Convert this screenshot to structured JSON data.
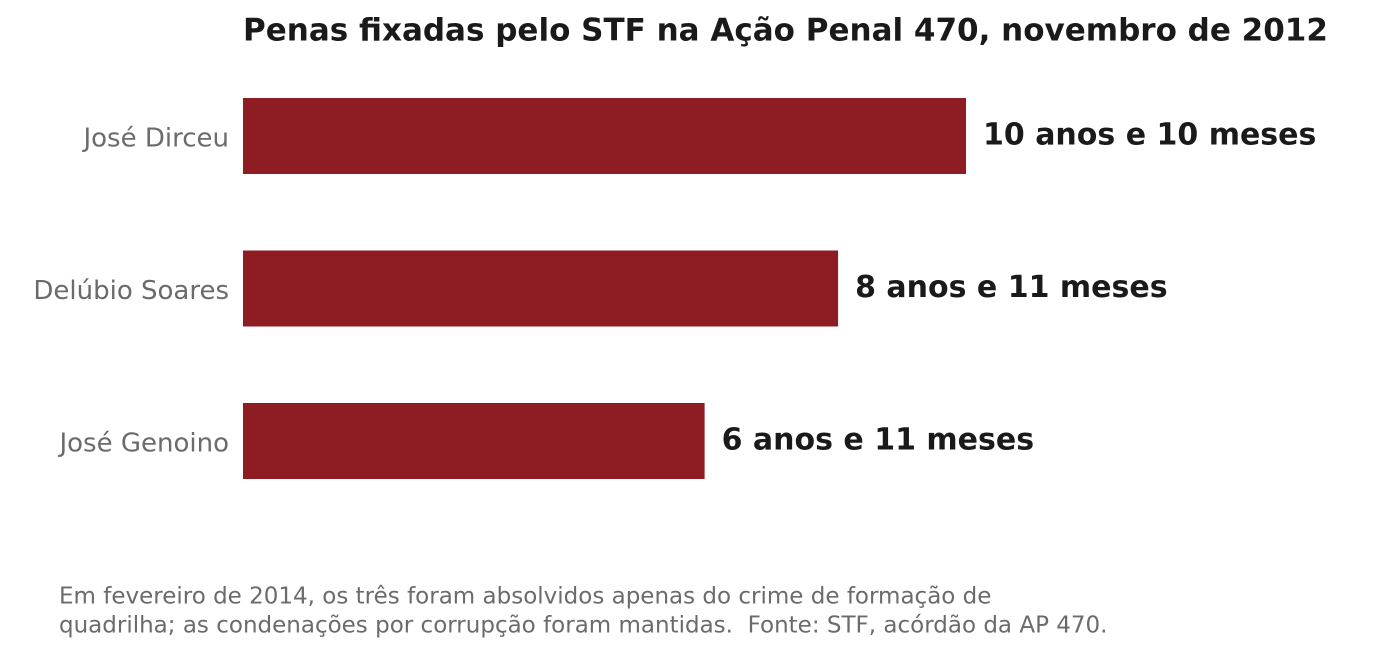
{
  "chart_data": {
    "type": "barh",
    "title": "Penas fixadas pelo STF na Ação Penal 470, novembro de 2012",
    "categories": [
      "José Dirceu",
      "Delúbio Soares",
      "José Genoino"
    ],
    "values": [
      130,
      107,
      83
    ],
    "value_labels": [
      "10 anos e 10 meses",
      "8 anos e 11 meses",
      "6 anos e 11 meses"
    ],
    "color": "#8e1d23",
    "annotations": [
      "Em fevereiro de 2014, os três foram absolvidos apenas do crime de formação de",
      "quadrilha; as condenações por corrupção foram mantidas.  Fonte: STF, acórdão da AP 470."
    ]
  }
}
